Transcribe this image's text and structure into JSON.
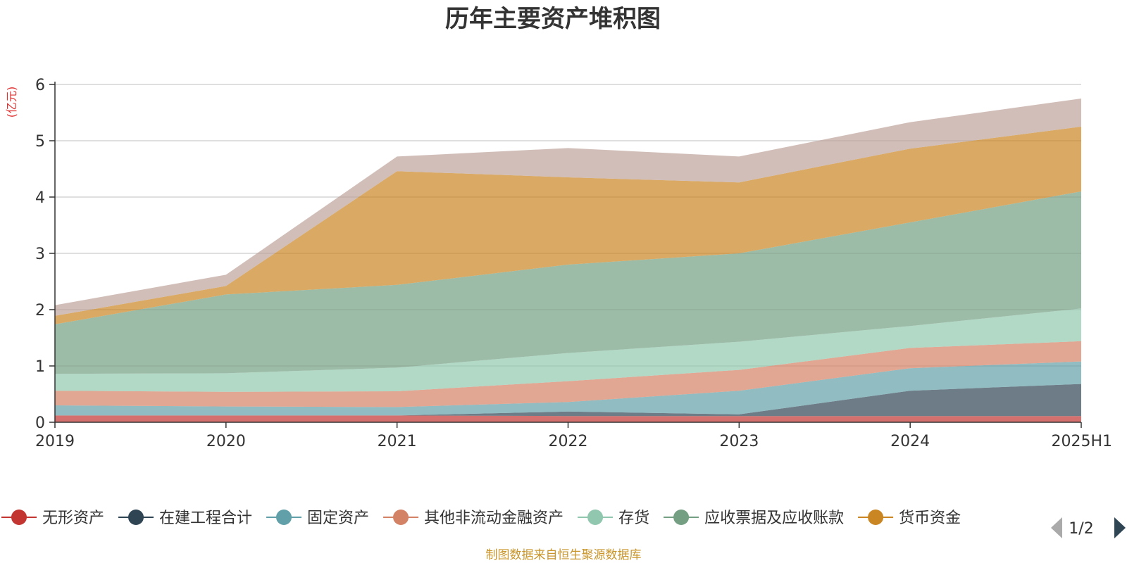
{
  "chart_data": {
    "type": "area",
    "stacked": true,
    "title": "历年主要资产堆积图",
    "unit_label": "(亿元)",
    "x": [
      "2019",
      "2020",
      "2021",
      "2022",
      "2023",
      "2024",
      "2025H1"
    ],
    "ylim": [
      0,
      6
    ],
    "yticks": [
      "0",
      "1",
      "2",
      "3",
      "4",
      "5",
      "6"
    ],
    "grid": true,
    "legend_position": "bottom",
    "series": [
      {
        "name": "无形资产",
        "color": "#c23531",
        "values": [
          0.12,
          0.12,
          0.12,
          0.11,
          0.11,
          0.11,
          0.11
        ]
      },
      {
        "name": "在建工程合计",
        "color": "#2f4554",
        "values": [
          0.0,
          0.0,
          0.0,
          0.08,
          0.03,
          0.45,
          0.57
        ]
      },
      {
        "name": "固定资产",
        "color": "#61a0a8",
        "values": [
          0.18,
          0.16,
          0.15,
          0.17,
          0.42,
          0.4,
          0.4
        ]
      },
      {
        "name": "其他非流动金融资产",
        "color": "#d48265",
        "values": [
          0.26,
          0.26,
          0.28,
          0.37,
          0.37,
          0.36,
          0.36
        ]
      },
      {
        "name": "存货",
        "color": "#91c7ae",
        "values": [
          0.3,
          0.33,
          0.42,
          0.5,
          0.5,
          0.39,
          0.58
        ]
      },
      {
        "name": "应收票据及应收账款",
        "color": "#749f83",
        "values": [
          0.88,
          1.4,
          1.47,
          1.57,
          1.57,
          1.84,
          2.08
        ]
      },
      {
        "name": "货币资金",
        "color": "#ca8622",
        "values": [
          0.15,
          0.15,
          2.02,
          1.55,
          1.26,
          1.31,
          1.15
        ]
      },
      {
        "name": "",
        "color": "#bda29a",
        "values": [
          0.19,
          0.2,
          0.26,
          0.52,
          0.46,
          0.47,
          0.5
        ]
      }
    ],
    "pager": "1/2"
  },
  "source_note": "制图数据来自恒生聚源数据库"
}
